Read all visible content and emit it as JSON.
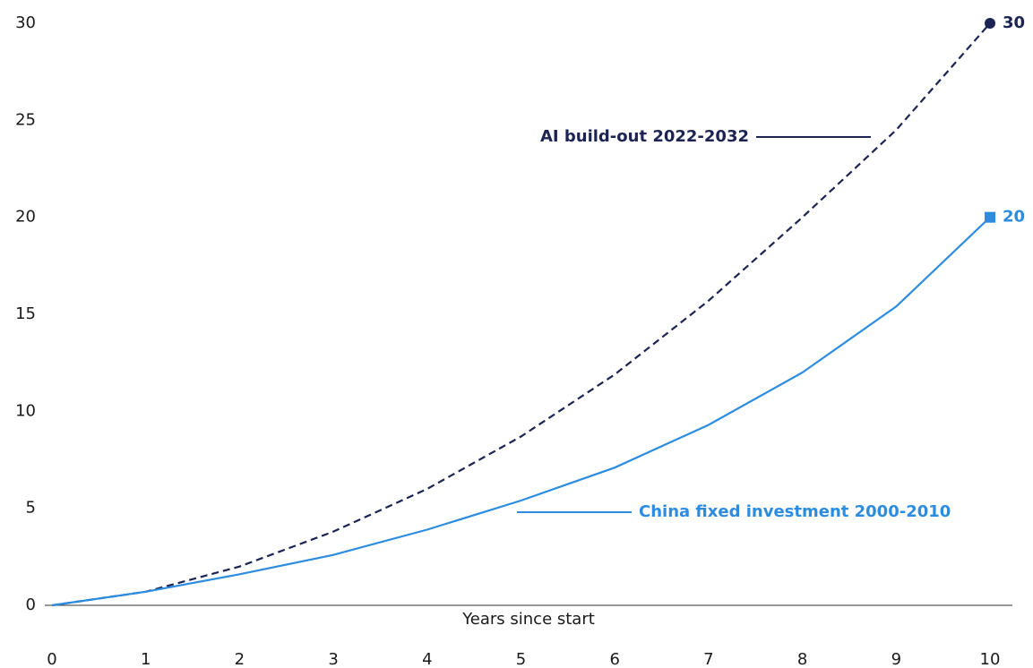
{
  "chart_data": {
    "type": "line",
    "x": [
      0,
      1,
      2,
      3,
      4,
      5,
      6,
      7,
      8,
      9,
      10
    ],
    "xlabel": "Years since start",
    "xlim": [
      0,
      10
    ],
    "xticks": [
      0,
      1,
      2,
      3,
      4,
      5,
      6,
      7,
      8,
      9,
      10
    ],
    "ylim": [
      0,
      30
    ],
    "yticks": [
      0,
      5,
      10,
      15,
      20,
      25,
      30
    ],
    "grid": false,
    "series": [
      {
        "name": "AI build-out 2022-2032",
        "color": "#1b2452",
        "linestyle": "dashed",
        "marker": "circle",
        "values": [
          0,
          0.7,
          2.0,
          3.8,
          6.0,
          8.7,
          11.9,
          15.7,
          20.0,
          24.5,
          30
        ]
      },
      {
        "name": "China fixed investment 2000-2010",
        "color": "#2b8ce0",
        "linestyle": "solid",
        "marker": "square",
        "values": [
          0,
          0.7,
          1.6,
          2.6,
          3.9,
          5.4,
          7.1,
          9.3,
          12.0,
          15.4,
          20
        ]
      }
    ]
  }
}
